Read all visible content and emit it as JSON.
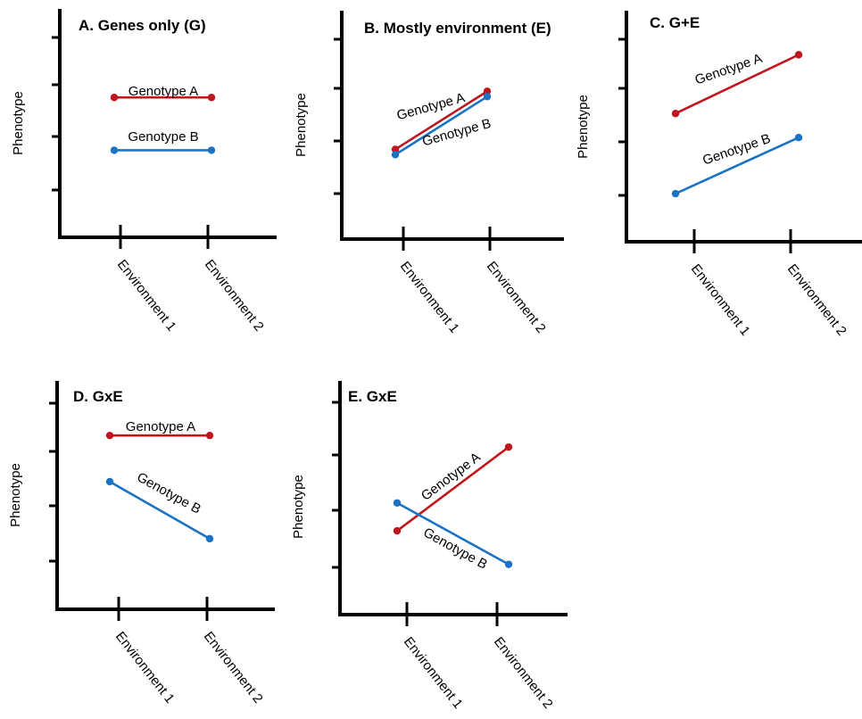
{
  "chart_data": [
    {
      "panel": "A",
      "type": "line",
      "title": "A. Genes only (G)",
      "ylabel": "Phenotype",
      "categories": [
        "Environment 1",
        "Environment 2"
      ],
      "ylim": [
        0,
        4
      ],
      "series": [
        {
          "name": "Genotype A",
          "color": "#c0151c",
          "values": [
            2.65,
            2.65
          ]
        },
        {
          "name": "Genotype B",
          "color": "#1a73c4",
          "values": [
            1.65,
            1.65
          ]
        }
      ]
    },
    {
      "panel": "B",
      "type": "line",
      "title": "B. Mostly environment (E)",
      "ylabel": "Phenotype",
      "categories": [
        "Environment 1",
        "Environment 2"
      ],
      "ylim": [
        0,
        4
      ],
      "series": [
        {
          "name": "Genotype A",
          "color": "#c0151c",
          "values": [
            1.7,
            2.8
          ]
        },
        {
          "name": "Genotype B",
          "color": "#1a73c4",
          "values": [
            1.6,
            2.7
          ]
        }
      ]
    },
    {
      "panel": "C",
      "type": "line",
      "title": "C. G+E",
      "ylabel": "Phenotype",
      "categories": [
        "Environment 1",
        "Environment 2"
      ],
      "ylim": [
        0,
        4
      ],
      "series": [
        {
          "name": "Genotype A",
          "color": "#c0151c",
          "values": [
            2.4,
            3.5
          ]
        },
        {
          "name": "Genotype B",
          "color": "#1a73c4",
          "values": [
            0.9,
            1.95
          ]
        }
      ]
    },
    {
      "panel": "D",
      "type": "line",
      "title": "D. GxE",
      "ylabel": "Phenotype",
      "categories": [
        "Environment 1",
        "Environment 2"
      ],
      "ylim": [
        0,
        4
      ],
      "series": [
        {
          "name": "Genotype A",
          "color": "#c0151c",
          "values": [
            3.2,
            3.2
          ]
        },
        {
          "name": "Genotype B",
          "color": "#1a73c4",
          "values": [
            2.35,
            1.3
          ]
        }
      ]
    },
    {
      "panel": "E",
      "type": "line",
      "title": "E. GxE",
      "ylabel": "Phenotype",
      "categories": [
        "Environment 1",
        "Environment 2"
      ],
      "ylim": [
        0,
        4
      ],
      "series": [
        {
          "name": "Genotype A",
          "color": "#c0151c",
          "values": [
            1.5,
            3.0
          ]
        },
        {
          "name": "Genotype B",
          "color": "#1a73c4",
          "values": [
            2.0,
            0.9
          ]
        }
      ]
    }
  ]
}
